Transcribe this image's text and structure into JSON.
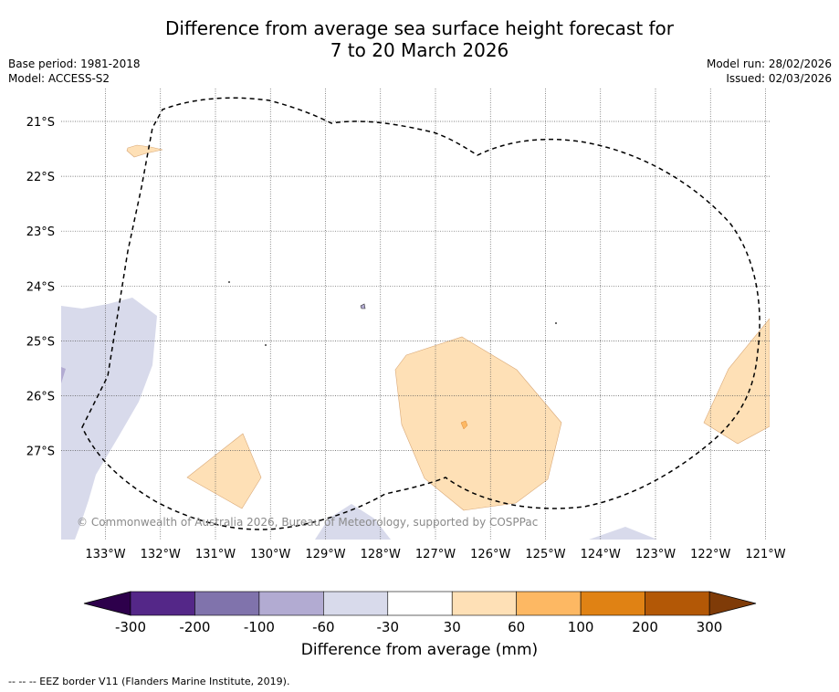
{
  "title_line1": "Difference from average sea surface height forecast for",
  "title_line2": "7 to 20 March 2026",
  "base_period": "Base period: 1981-2018",
  "model": "Model: ACCESS-S2",
  "model_run": "Model run: 28/02/2026",
  "issued": "Issued: 02/03/2026",
  "copyright": "© Commonwealth of Australia 2026, Bureau of Meteorology, supported by COSPPac",
  "colorbar_label": "Difference from average (mm)",
  "footnote": "--  --  -- EEZ border V11 (Flanders Marine Institute, 2019).",
  "latitudes": [
    {
      "value": -21,
      "label": "21°S"
    },
    {
      "value": -22,
      "label": "22°S"
    },
    {
      "value": -23,
      "label": "23°S"
    },
    {
      "value": -24,
      "label": "24°S"
    },
    {
      "value": -25,
      "label": "25°S"
    },
    {
      "value": -26,
      "label": "26°S"
    },
    {
      "value": -27,
      "label": "27°S"
    }
  ],
  "longitudes": [
    {
      "value": -133,
      "label": "133°W"
    },
    {
      "value": -132,
      "label": "132°W"
    },
    {
      "value": -131,
      "label": "131°W"
    },
    {
      "value": -130,
      "label": "130°W"
    },
    {
      "value": -129,
      "label": "129°W"
    },
    {
      "value": -128,
      "label": "128°W"
    },
    {
      "value": -127,
      "label": "127°W"
    },
    {
      "value": -126,
      "label": "126°W"
    },
    {
      "value": -125,
      "label": "125°W"
    },
    {
      "value": -124,
      "label": "124°W"
    },
    {
      "value": -123,
      "label": "123°W"
    },
    {
      "value": -122,
      "label": "122°W"
    },
    {
      "value": -121,
      "label": "121°W"
    }
  ],
  "colorbar": {
    "bins": [
      {
        "from": -300,
        "to": -200,
        "color": "#542788"
      },
      {
        "from": -200,
        "to": -100,
        "color": "#8073ac"
      },
      {
        "from": -100,
        "to": -60,
        "color": "#b2abd2"
      },
      {
        "from": -60,
        "to": -30,
        "color": "#d8daeb"
      },
      {
        "from": -30,
        "to": 30,
        "color": "#ffffff"
      },
      {
        "from": 30,
        "to": 60,
        "color": "#fee0b6"
      },
      {
        "from": 60,
        "to": 100,
        "color": "#fdb863"
      },
      {
        "from": 100,
        "to": 200,
        "color": "#e08214"
      },
      {
        "from": 200,
        "to": 300,
        "color": "#b35806"
      }
    ],
    "under_color": "#2d004b",
    "over_color": "#7f3b08",
    "ticks": [
      "-300",
      "-200",
      "-100",
      "-60",
      "-30",
      "30",
      "60",
      "100",
      "200",
      "300"
    ]
  }
}
